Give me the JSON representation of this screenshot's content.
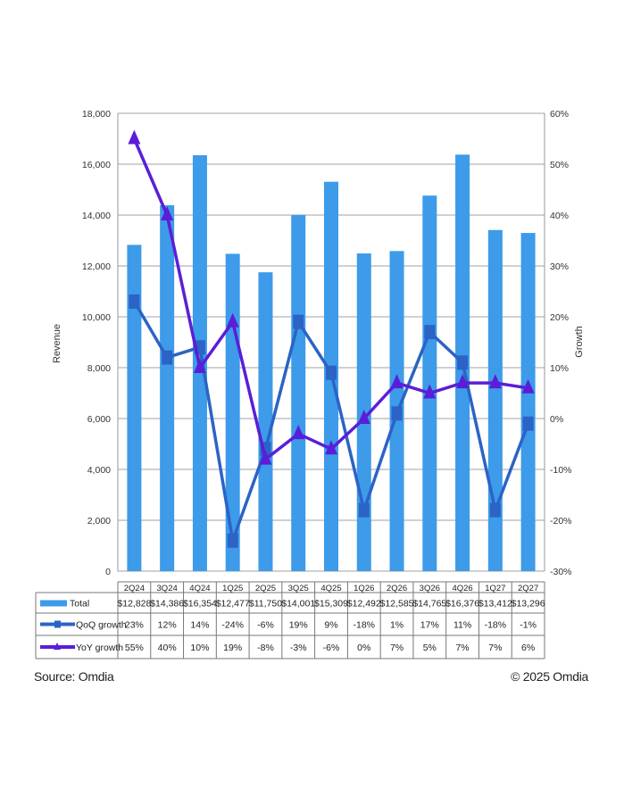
{
  "chart_data": {
    "type": "bar+line",
    "title": "",
    "categories": [
      "2Q24",
      "3Q24",
      "4Q24",
      "1Q25",
      "2Q25",
      "3Q25",
      "4Q25",
      "1Q26",
      "2Q26",
      "3Q26",
      "4Q26",
      "1Q27",
      "2Q27"
    ],
    "ylabel": "Revenue",
    "y2label": "Growth",
    "ylim": [
      0,
      18000
    ],
    "y2lim": [
      -30,
      60
    ],
    "yticks": [
      "0",
      "2,000",
      "4,000",
      "6,000",
      "8,000",
      "10,000",
      "12,000",
      "14,000",
      "16,000",
      "18,000"
    ],
    "y2ticks": [
      "-30%",
      "-20%",
      "-10%",
      "0%",
      "10%",
      "20%",
      "30%",
      "40%",
      "50%",
      "60%"
    ],
    "grid": true,
    "series": [
      {
        "name": "Total",
        "type": "bar",
        "axis": "left",
        "color": "#3d9be9",
        "values": [
          12828,
          14386,
          16354,
          12477,
          11750,
          14001,
          15309,
          12492,
          12585,
          14765,
          16376,
          13412,
          13296
        ],
        "labels": [
          "$12,828",
          "$14,386",
          "$16,354",
          "$12,477",
          "$11,750",
          "$14,001",
          "$15,309",
          "$12,492",
          "$12,585",
          "$14,765",
          "$16,376",
          "$13,412",
          "$13,296"
        ]
      },
      {
        "name": "QoQ growth",
        "type": "line",
        "marker": "square",
        "axis": "right",
        "color": "#2b63c6",
        "values": [
          23,
          12,
          14,
          -24,
          -6,
          19,
          9,
          -18,
          1,
          17,
          11,
          -18,
          -1
        ],
        "labels": [
          "23%",
          "12%",
          "14%",
          "-24%",
          "-6%",
          "19%",
          "9%",
          "-18%",
          "1%",
          "17%",
          "11%",
          "-18%",
          "-1%"
        ]
      },
      {
        "name": "YoY growth",
        "type": "line",
        "marker": "triangle",
        "axis": "right",
        "color": "#5a1ed8",
        "values": [
          55,
          40,
          10,
          19,
          -8,
          -3,
          -6,
          0,
          7,
          5,
          7,
          7,
          6
        ],
        "labels": [
          "55%",
          "40%",
          "10%",
          "19%",
          "-8%",
          "-3%",
          "-6%",
          "0%",
          "7%",
          "5%",
          "7%",
          "7%",
          "6%"
        ]
      }
    ]
  },
  "footer": {
    "source": "Source: Omdia",
    "copyright": "© 2025 Omdia"
  }
}
